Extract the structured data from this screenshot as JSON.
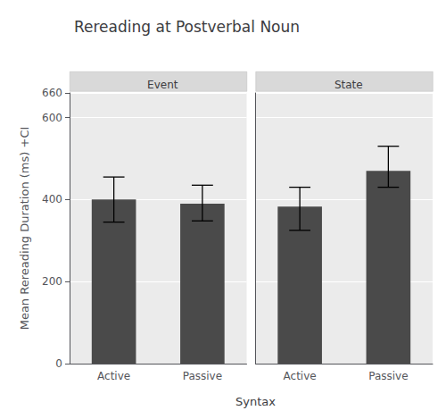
{
  "chart_data": {
    "type": "bar",
    "title": "Rereading at Postverbal Noun",
    "xlabel": "Syntax",
    "ylabel": "Mean Rereading Duration (ms) +CI",
    "categories": [
      "Active",
      "Passive"
    ],
    "series": [
      {
        "name": "Event",
        "values": [
          400,
          390
        ],
        "ci_lower": [
          345,
          348
        ],
        "ci_upper": [
          455,
          435
        ]
      },
      {
        "name": "State",
        "values": [
          383,
          470
        ],
        "ci_lower": [
          325,
          430
        ],
        "ci_upper": [
          430,
          530
        ]
      }
    ],
    "color": "#4a4a4a",
    "ylim": [
      0,
      660
    ],
    "yticks": [
      0,
      200,
      400,
      600
    ],
    "grid": true
  }
}
